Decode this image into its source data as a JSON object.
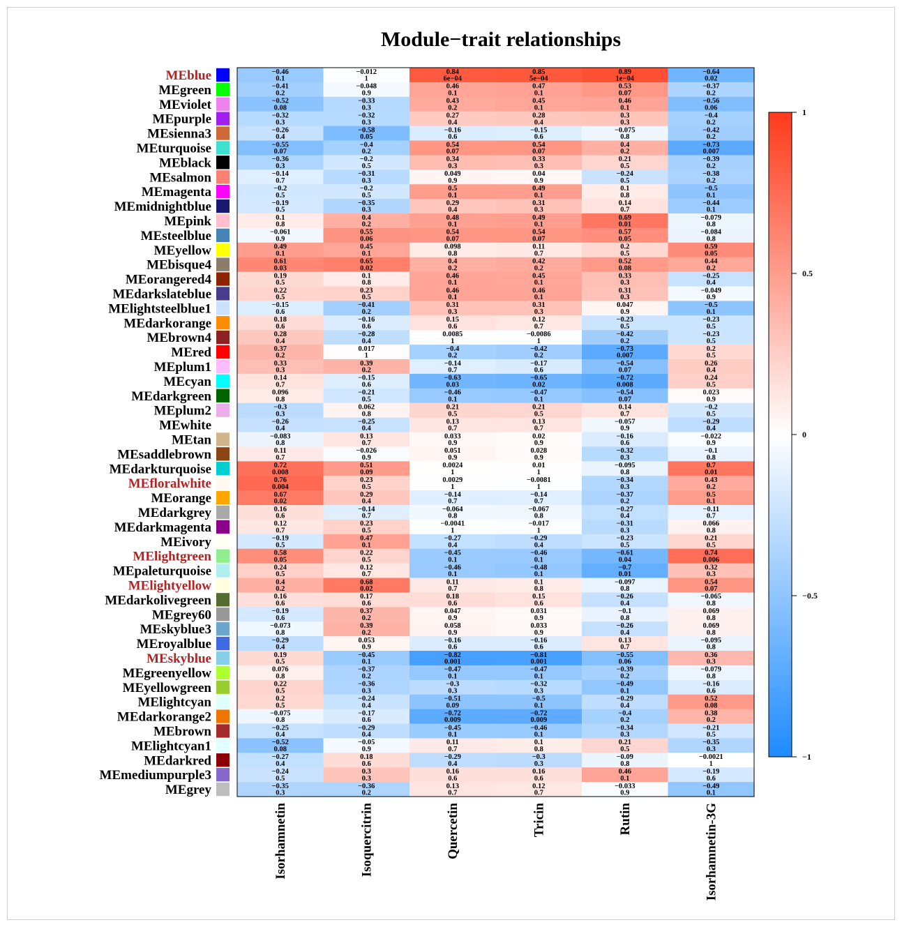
{
  "chart_data": {
    "type": "heatmap",
    "title": "Module−trait relationships",
    "columns": [
      "Isorhamnetin",
      "Isoquercitrin",
      "Quercetin",
      "Tricin",
      "Rutin",
      "Isorhamnetin-3G"
    ],
    "rows": [
      {
        "name": "MEblue",
        "color": "#0000ff",
        "highlight": true,
        "cor": [
          "−0.46",
          "−0.012",
          "0.84",
          "0.85",
          "0.89",
          "−0.64"
        ],
        "p": [
          "0.1",
          "1",
          "6e−04",
          "5e−04",
          "1e−04",
          "0.02"
        ]
      },
      {
        "name": "MEgreen",
        "color": "#00ff00",
        "highlight": false,
        "cor": [
          "−0.41",
          "−0.048",
          "0.46",
          "0.47",
          "0.53",
          "−0.37"
        ],
        "p": [
          "0.2",
          "0.9",
          "0.1",
          "0.1",
          "0.07",
          "0.2"
        ]
      },
      {
        "name": "MEviolet",
        "color": "#ee82ee",
        "highlight": false,
        "cor": [
          "−0.52",
          "−0.33",
          "0.43",
          "0.45",
          "0.46",
          "−0.56"
        ],
        "p": [
          "0.08",
          "0.3",
          "0.2",
          "0.1",
          "0.1",
          "0.06"
        ]
      },
      {
        "name": "MEpurple",
        "color": "#a020f0",
        "highlight": false,
        "cor": [
          "−0.32",
          "−0.32",
          "0.27",
          "0.28",
          "0.3",
          "−0.4"
        ],
        "p": [
          "0.3",
          "0.3",
          "0.4",
          "0.4",
          "0.3",
          "0.2"
        ]
      },
      {
        "name": "MEsienna3",
        "color": "#cd6839",
        "highlight": false,
        "cor": [
          "−0.26",
          "−0.58",
          "−0.16",
          "−0.15",
          "−0.075",
          "−0.42"
        ],
        "p": [
          "0.4",
          "0.05",
          "0.6",
          "0.6",
          "0.8",
          "0.2"
        ]
      },
      {
        "name": "MEturquoise",
        "color": "#40e0d0",
        "highlight": false,
        "cor": [
          "−0.55",
          "−0.4",
          "0.54",
          "0.54",
          "0.4",
          "−0.73"
        ],
        "p": [
          "0.07",
          "0.2",
          "0.07",
          "0.07",
          "0.2",
          "0.007"
        ]
      },
      {
        "name": "MEblack",
        "color": "#000000",
        "highlight": false,
        "cor": [
          "−0.36",
          "−0.2",
          "0.34",
          "0.33",
          "0.21",
          "−0.39"
        ],
        "p": [
          "0.3",
          "0.5",
          "0.3",
          "0.3",
          "0.5",
          "0.2"
        ]
      },
      {
        "name": "MEsalmon",
        "color": "#fa8072",
        "highlight": false,
        "cor": [
          "−0.14",
          "−0.31",
          "0.049",
          "0.04",
          "−0.24",
          "−0.38"
        ],
        "p": [
          "0.7",
          "0.3",
          "0.9",
          "0.9",
          "0.5",
          "0.2"
        ]
      },
      {
        "name": "MEmagenta",
        "color": "#ff00ff",
        "highlight": false,
        "cor": [
          "−0.2",
          "−0.2",
          "0.5",
          "0.49",
          "0.1",
          "−0.5"
        ],
        "p": [
          "0.5",
          "0.5",
          "0.1",
          "0.1",
          "0.8",
          "0.1"
        ]
      },
      {
        "name": "MEmidnightblue",
        "color": "#191970",
        "highlight": false,
        "cor": [
          "−0.19",
          "−0.35",
          "0.29",
          "0.31",
          "0.14",
          "−0.44"
        ],
        "p": [
          "0.5",
          "0.3",
          "0.4",
          "0.3",
          "0.7",
          "0.1"
        ]
      },
      {
        "name": "MEpink",
        "color": "#ffc0cb",
        "highlight": false,
        "cor": [
          "0.1",
          "0.4",
          "0.48",
          "0.49",
          "0.69",
          "−0.079"
        ],
        "p": [
          "0.8",
          "0.2",
          "0.1",
          "0.1",
          "0.01",
          "0.8"
        ]
      },
      {
        "name": "MEsteelblue",
        "color": "#4682b4",
        "highlight": false,
        "cor": [
          "−0.061",
          "0.55",
          "0.54",
          "0.54",
          "0.57",
          "−0.084"
        ],
        "p": [
          "0.9",
          "0.06",
          "0.07",
          "0.07",
          "0.05",
          "0.8"
        ]
      },
      {
        "name": "MEyellow",
        "color": "#ffff00",
        "highlight": false,
        "cor": [
          "0.49",
          "0.45",
          "0.098",
          "0.11",
          "0.2",
          "0.59"
        ],
        "p": [
          "0.1",
          "0.1",
          "0.8",
          "0.7",
          "0.5",
          "0.05"
        ]
      },
      {
        "name": "MEbisque4",
        "color": "#8b7d6b",
        "highlight": false,
        "cor": [
          "0.61",
          "0.65",
          "0.4",
          "0.42",
          "0.52",
          "0.44"
        ],
        "p": [
          "0.03",
          "0.02",
          "0.2",
          "0.2",
          "0.08",
          "0.2"
        ]
      },
      {
        "name": "MEorangered4",
        "color": "#8b2500",
        "highlight": false,
        "cor": [
          "0.19",
          "0.1",
          "0.46",
          "0.45",
          "0.33",
          "−0.25"
        ],
        "p": [
          "0.5",
          "0.8",
          "0.1",
          "0.1",
          "0.3",
          "0.4"
        ]
      },
      {
        "name": "MEdarkslateblue",
        "color": "#483d8b",
        "highlight": false,
        "cor": [
          "0.22",
          "0.23",
          "0.46",
          "0.46",
          "0.31",
          "−0.049"
        ],
        "p": [
          "0.5",
          "0.5",
          "0.1",
          "0.1",
          "0.3",
          "0.9"
        ]
      },
      {
        "name": "MElightsteelblue1",
        "color": "#cae1ff",
        "highlight": false,
        "cor": [
          "−0.15",
          "−0.41",
          "0.31",
          "0.31",
          "0.047",
          "−0.5"
        ],
        "p": [
          "0.6",
          "0.2",
          "0.3",
          "0.3",
          "0.9",
          "0.1"
        ]
      },
      {
        "name": "MEdarkorange",
        "color": "#ff8c00",
        "highlight": false,
        "cor": [
          "0.18",
          "−0.16",
          "0.15",
          "0.12",
          "−0.23",
          "−0.23"
        ],
        "p": [
          "0.6",
          "0.6",
          "0.6",
          "0.7",
          "0.5",
          "0.5"
        ]
      },
      {
        "name": "MEbrown4",
        "color": "#8b2323",
        "highlight": false,
        "cor": [
          "0.28",
          "−0.28",
          "0.0085",
          "−0.0086",
          "−0.42",
          "−0.23"
        ],
        "p": [
          "0.4",
          "0.4",
          "1",
          "1",
          "0.2",
          "0.5"
        ]
      },
      {
        "name": "MEred",
        "color": "#ff0000",
        "highlight": false,
        "cor": [
          "0.37",
          "0.017",
          "−0.4",
          "−0.42",
          "−0.73",
          "0.2"
        ],
        "p": [
          "0.2",
          "1",
          "0.2",
          "0.2",
          "0.007",
          "0.5"
        ]
      },
      {
        "name": "MEplum1",
        "color": "#ffbbff",
        "highlight": false,
        "cor": [
          "0.33",
          "0.39",
          "−0.14",
          "−0.17",
          "−0.54",
          "0.26"
        ],
        "p": [
          "0.3",
          "0.2",
          "0.7",
          "0.6",
          "0.07",
          "0.4"
        ]
      },
      {
        "name": "MEcyan",
        "color": "#00ffff",
        "highlight": false,
        "cor": [
          "0.14",
          "−0.15",
          "−0.63",
          "−0.65",
          "−0.72",
          "0.24"
        ],
        "p": [
          "0.7",
          "0.6",
          "0.03",
          "0.02",
          "0.008",
          "0.5"
        ]
      },
      {
        "name": "MEdarkgreen",
        "color": "#006400",
        "highlight": false,
        "cor": [
          "0.096",
          "−0.21",
          "−0.46",
          "−0.47",
          "−0.54",
          "0.023"
        ],
        "p": [
          "0.8",
          "0.5",
          "0.1",
          "0.1",
          "0.07",
          "0.9"
        ]
      },
      {
        "name": "MEplum2",
        "color": "#eeaeee",
        "highlight": false,
        "cor": [
          "−0.3",
          "0.062",
          "0.21",
          "0.21",
          "0.14",
          "−0.2"
        ],
        "p": [
          "0.3",
          "0.8",
          "0.5",
          "0.5",
          "0.7",
          "0.5"
        ]
      },
      {
        "name": "MEwhite",
        "color": "#ffffff",
        "highlight": false,
        "cor": [
          "−0.26",
          "−0.25",
          "0.13",
          "0.13",
          "−0.057",
          "−0.29"
        ],
        "p": [
          "0.4",
          "0.4",
          "0.7",
          "0.7",
          "0.9",
          "0.4"
        ]
      },
      {
        "name": "MEtan",
        "color": "#d2b48c",
        "highlight": false,
        "cor": [
          "−0.083",
          "0.13",
          "0.033",
          "0.02",
          "−0.16",
          "−0.022"
        ],
        "p": [
          "0.8",
          "0.7",
          "0.9",
          "0.9",
          "0.6",
          "0.9"
        ]
      },
      {
        "name": "MEsaddlebrown",
        "color": "#8b4513",
        "highlight": false,
        "cor": [
          "0.11",
          "−0.026",
          "0.051",
          "0.028",
          "−0.32",
          "−0.1"
        ],
        "p": [
          "0.7",
          "0.9",
          "0.9",
          "0.9",
          "0.3",
          "0.8"
        ]
      },
      {
        "name": "MEdarkturquoise",
        "color": "#00ced1",
        "highlight": false,
        "cor": [
          "0.72",
          "0.51",
          "0.0024",
          "0.01",
          "−0.095",
          "0.7"
        ],
        "p": [
          "0.008",
          "0.09",
          "1",
          "1",
          "0.8",
          "0.01"
        ]
      },
      {
        "name": "MEfloralwhite",
        "color": "#fffaf0",
        "highlight": true,
        "cor": [
          "0.76",
          "0.23",
          "0.0029",
          "−0.0081",
          "−0.34",
          "0.43"
        ],
        "p": [
          "0.004",
          "0.5",
          "1",
          "1",
          "0.3",
          "0.2"
        ]
      },
      {
        "name": "MEorange",
        "color": "#ffa500",
        "highlight": false,
        "cor": [
          "0.67",
          "0.29",
          "−0.14",
          "−0.14",
          "−0.37",
          "0.5"
        ],
        "p": [
          "0.02",
          "0.4",
          "0.7",
          "0.7",
          "0.2",
          "0.1"
        ]
      },
      {
        "name": "MEdarkgrey",
        "color": "#a9a9a9",
        "highlight": false,
        "cor": [
          "0.16",
          "−0.14",
          "−0.064",
          "−0.067",
          "−0.27",
          "−0.11"
        ],
        "p": [
          "0.6",
          "0.7",
          "0.8",
          "0.8",
          "0.4",
          "0.7"
        ]
      },
      {
        "name": "MEdarkmagenta",
        "color": "#8b008b",
        "highlight": false,
        "cor": [
          "0.12",
          "0.23",
          "−0.0041",
          "−0.017",
          "−0.31",
          "0.066"
        ],
        "p": [
          "0.7",
          "0.5",
          "1",
          "1",
          "0.3",
          "0.8"
        ]
      },
      {
        "name": "MEivory",
        "color": "#fffff0",
        "highlight": false,
        "cor": [
          "−0.19",
          "0.47",
          "−0.27",
          "−0.29",
          "−0.23",
          "0.21"
        ],
        "p": [
          "0.5",
          "0.1",
          "0.4",
          "0.4",
          "0.5",
          "0.5"
        ]
      },
      {
        "name": "MElightgreen",
        "color": "#90ee90",
        "highlight": true,
        "cor": [
          "0.58",
          "0.22",
          "−0.45",
          "−0.46",
          "−0.61",
          "0.74"
        ],
        "p": [
          "0.05",
          "0.5",
          "0.1",
          "0.1",
          "0.04",
          "0.006"
        ]
      },
      {
        "name": "MEpaleturquoise",
        "color": "#afeeee",
        "highlight": false,
        "cor": [
          "0.24",
          "0.12",
          "−0.46",
          "−0.48",
          "−0.7",
          "0.32"
        ],
        "p": [
          "0.5",
          "0.7",
          "0.1",
          "0.1",
          "0.01",
          "0.3"
        ]
      },
      {
        "name": "MElightyellow",
        "color": "#ffffe0",
        "highlight": true,
        "cor": [
          "0.4",
          "0.68",
          "0.11",
          "0.1",
          "−0.097",
          "0.54"
        ],
        "p": [
          "0.2",
          "0.02",
          "0.7",
          "0.8",
          "0.8",
          "0.07"
        ]
      },
      {
        "name": "MEdarkolivegreen",
        "color": "#556b2f",
        "highlight": false,
        "cor": [
          "0.16",
          "0.17",
          "0.18",
          "0.15",
          "−0.26",
          "−0.065"
        ],
        "p": [
          "0.6",
          "0.6",
          "0.6",
          "0.6",
          "0.4",
          "0.8"
        ]
      },
      {
        "name": "MEgrey60",
        "color": "#999999",
        "highlight": false,
        "cor": [
          "−0.19",
          "0.37",
          "0.047",
          "0.031",
          "−0.1",
          "0.069"
        ],
        "p": [
          "0.6",
          "0.2",
          "0.9",
          "0.9",
          "0.8",
          "0.8"
        ]
      },
      {
        "name": "MEskyblue3",
        "color": "#6ca6cd",
        "highlight": false,
        "cor": [
          "−0.073",
          "0.39",
          "0.058",
          "0.033",
          "−0.26",
          "0.069"
        ],
        "p": [
          "0.8",
          "0.2",
          "0.9",
          "0.9",
          "0.4",
          "0.8"
        ]
      },
      {
        "name": "MEroyalblue",
        "color": "#4169e1",
        "highlight": false,
        "cor": [
          "−0.29",
          "0.053",
          "−0.16",
          "−0.16",
          "0.13",
          "−0.095"
        ],
        "p": [
          "0.4",
          "0.9",
          "0.6",
          "0.6",
          "0.7",
          "0.8"
        ]
      },
      {
        "name": "MEskyblue",
        "color": "#87ceeb",
        "highlight": true,
        "cor": [
          "0.19",
          "−0.45",
          "−0.82",
          "−0.81",
          "−0.55",
          "0.36"
        ],
        "p": [
          "0.5",
          "0.1",
          "0.001",
          "0.001",
          "0.06",
          "0.3"
        ]
      },
      {
        "name": "MEgreenyellow",
        "color": "#adff2f",
        "highlight": false,
        "cor": [
          "0.076",
          "−0.37",
          "−0.47",
          "−0.47",
          "−0.39",
          "−0.079"
        ],
        "p": [
          "0.8",
          "0.2",
          "0.1",
          "0.1",
          "0.2",
          "0.8"
        ]
      },
      {
        "name": "MEyellowgreen",
        "color": "#9acd32",
        "highlight": false,
        "cor": [
          "0.22",
          "−0.36",
          "−0.3",
          "−0.32",
          "−0.49",
          "−0.16"
        ],
        "p": [
          "0.5",
          "0.3",
          "0.3",
          "0.3",
          "0.1",
          "0.6"
        ]
      },
      {
        "name": "MElightcyan",
        "color": "#e0ffff",
        "highlight": false,
        "cor": [
          "0.2",
          "−0.24",
          "−0.51",
          "−0.5",
          "−0.29",
          "0.52"
        ],
        "p": [
          "0.5",
          "0.4",
          "0.09",
          "0.1",
          "0.4",
          "0.08"
        ]
      },
      {
        "name": "MEdarkorange2",
        "color": "#ee7600",
        "highlight": false,
        "cor": [
          "−0.075",
          "−0.17",
          "−0.72",
          "−0.72",
          "−0.4",
          "0.38"
        ],
        "p": [
          "0.8",
          "0.6",
          "0.009",
          "0.009",
          "0.2",
          "0.2"
        ]
      },
      {
        "name": "MEbrown",
        "color": "#a52a2a",
        "highlight": false,
        "cor": [
          "−0.25",
          "−0.29",
          "−0.45",
          "−0.46",
          "−0.34",
          "−0.21"
        ],
        "p": [
          "0.4",
          "0.4",
          "0.1",
          "0.1",
          "0.3",
          "0.5"
        ]
      },
      {
        "name": "MElightcyan1",
        "color": "#e0ffff",
        "highlight": false,
        "cor": [
          "−0.52",
          "−0.05",
          "0.11",
          "0.1",
          "0.21",
          "−0.35"
        ],
        "p": [
          "0.08",
          "0.9",
          "0.7",
          "0.8",
          "0.5",
          "0.3"
        ]
      },
      {
        "name": "MEdarkred",
        "color": "#8b0000",
        "highlight": false,
        "cor": [
          "−0.27",
          "0.18",
          "−0.29",
          "−0.3",
          "−0.09",
          "−0.0021"
        ],
        "p": [
          "0.4",
          "0.6",
          "0.4",
          "0.3",
          "0.8",
          "1"
        ]
      },
      {
        "name": "MEmediumpurple3",
        "color": "#8968cd",
        "highlight": false,
        "cor": [
          "−0.24",
          "0.3",
          "0.16",
          "0.16",
          "0.46",
          "−0.19"
        ],
        "p": [
          "0.5",
          "0.3",
          "0.6",
          "0.6",
          "0.1",
          "0.6"
        ]
      },
      {
        "name": "MEgrey",
        "color": "#bebebe",
        "highlight": false,
        "cor": [
          "−0.35",
          "−0.36",
          "0.13",
          "0.12",
          "−0.033",
          "−0.49"
        ],
        "p": [
          "0.3",
          "0.2",
          "0.7",
          "0.7",
          "0.9",
          "0.1"
        ]
      }
    ],
    "color_scale": {
      "range": [
        -1,
        1
      ],
      "low": "#1e8bff",
      "mid": "#ffffff",
      "high": "#ff3a1a",
      "ticks": [
        {
          "value": 1,
          "label": "1"
        },
        {
          "value": 0.5,
          "label": "0.5"
        },
        {
          "value": 0,
          "label": "0"
        },
        {
          "value": -0.5,
          "label": "−0.5"
        },
        {
          "value": -1,
          "label": "−1"
        }
      ]
    },
    "highlight_color": "#b22222"
  }
}
